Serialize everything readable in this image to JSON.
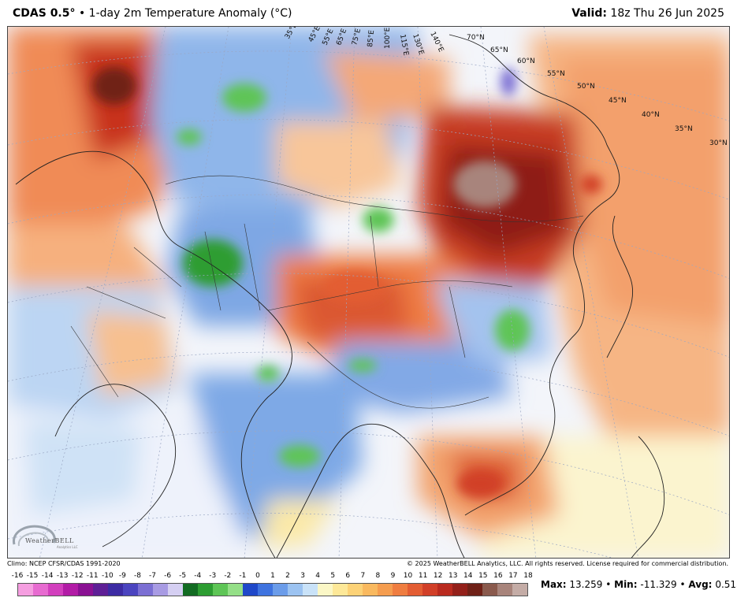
{
  "header": {
    "model": "CDAS 0.5°",
    "separator": " • ",
    "title": "1-day 2m Temperature Anomaly (°C)",
    "valid_label": "Valid:",
    "valid_value": " 18z Thu 26 Jun 2025"
  },
  "map": {
    "region": "Asia",
    "fill_variable": "2m temperature anomaly",
    "lat_labels": [
      "70°N",
      "65°N",
      "60°N",
      "55°N",
      "50°N",
      "45°N",
      "40°N",
      "35°N",
      "30°N"
    ],
    "lon_labels": [
      "35°E",
      "45°E",
      "55°E",
      "65°E",
      "75°E",
      "85°E",
      "100°E",
      "115°E",
      "130°E",
      "140°E"
    ]
  },
  "logo": {
    "name": "WeatherBELL",
    "sub": "Analytics LLC"
  },
  "credits": {
    "left": "Climo: NCEP CFSR/CDAS 1991-2020",
    "right": "© 2025 WeatherBELL Analytics, LLC. All rights reserved. License required for commercial distribution."
  },
  "legend": {
    "ticks": [
      "-16",
      "-15",
      "-14",
      "-13",
      "-12",
      "-11",
      "-10",
      "-9",
      "-8",
      "-7",
      "-6",
      "-5",
      "-4",
      "-3",
      "-2",
      "-1",
      "0",
      "1",
      "2",
      "3",
      "4",
      "5",
      "6",
      "7",
      "8",
      "9",
      "10",
      "11",
      "12",
      "13",
      "14",
      "15",
      "16",
      "17",
      "18"
    ],
    "colors": [
      "#f59ee0",
      "#e76bd0",
      "#d23fbd",
      "#b21ca6",
      "#8a1193",
      "#5e1f96",
      "#3c2ba3",
      "#4b44bf",
      "#7b6fd3",
      "#a89be3",
      "#d5cff2",
      "#126b22",
      "#2d9d32",
      "#5ec556",
      "#94df87",
      "#1f48c9",
      "#3f73df",
      "#6b9ce9",
      "#9cc3f1",
      "#c9e2f8",
      "#fbf7c6",
      "#fde898",
      "#fcd277",
      "#f9b95f",
      "#f59d4f",
      "#ef7d40",
      "#e35d33",
      "#d13f28",
      "#b92a1f",
      "#93201a",
      "#6f2117",
      "#8a5a4d",
      "#a8847b",
      "#c4aca6"
    ]
  },
  "stats": {
    "max_label": "Max:",
    "max_value": "13.259",
    "min_label": "Min:",
    "min_value": "-11.329",
    "avg_label": "Avg:",
    "avg_value": "0.513",
    "sep": " • "
  }
}
